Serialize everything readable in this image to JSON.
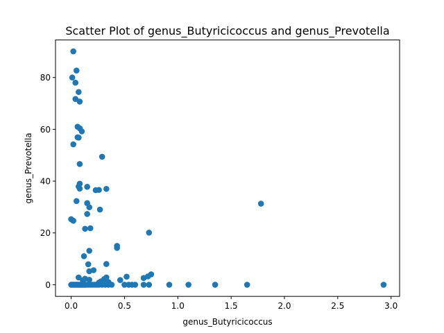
{
  "chart_data": {
    "type": "scatter",
    "title": "Scatter Plot of genus_Butyricicoccus and genus_Prevotella",
    "xlabel": "genus_Butyricicoccus",
    "ylabel": "genus_Prevotella",
    "xlim": [
      -0.147,
      3.08
    ],
    "ylim": [
      -4.5,
      94.5
    ],
    "xticks": [
      0.0,
      0.5,
      1.0,
      1.5,
      2.0,
      2.5,
      3.0
    ],
    "xtick_labels": [
      "0.0",
      "0.5",
      "1.0",
      "1.5",
      "2.0",
      "2.5",
      "3.0"
    ],
    "yticks": [
      0,
      20,
      40,
      60,
      80
    ],
    "ytick_labels": [
      "0",
      "20",
      "40",
      "60",
      "80"
    ],
    "grid": false,
    "colors": {
      "marker": "#1f77b4",
      "axes": "#000000",
      "background": "#ffffff"
    },
    "series": [
      {
        "points": [
          [
            0.02,
            90.1
          ],
          [
            0.05,
            82.7
          ],
          [
            0.01,
            80.0
          ],
          [
            0.04,
            78.0
          ],
          [
            0.07,
            74.4
          ],
          [
            0.04,
            71.7
          ],
          [
            0.08,
            70.7
          ],
          [
            0.06,
            61.0
          ],
          [
            0.08,
            60.4
          ],
          [
            0.1,
            59.2
          ],
          [
            0.06,
            56.9
          ],
          [
            0.07,
            56.8
          ],
          [
            0.02,
            54.2
          ],
          [
            0.29,
            49.4
          ],
          [
            0.08,
            46.6
          ],
          [
            0.08,
            39.0
          ],
          [
            0.07,
            37.9
          ],
          [
            0.08,
            37.1
          ],
          [
            0.15,
            37.8
          ],
          [
            0.33,
            37.0
          ],
          [
            0.23,
            36.5
          ],
          [
            0.26,
            36.6
          ],
          [
            0.05,
            32.3
          ],
          [
            0.15,
            31.5
          ],
          [
            0.17,
            29.9
          ],
          [
            0.27,
            29.0
          ],
          [
            0.15,
            27.3
          ],
          [
            0.0,
            25.3
          ],
          [
            0.02,
            24.7
          ],
          [
            0.13,
            21.6
          ],
          [
            0.18,
            21.8
          ],
          [
            0.73,
            20.1
          ],
          [
            0.43,
            15.0
          ],
          [
            0.43,
            14.2
          ],
          [
            0.17,
            13.1
          ],
          [
            0.12,
            11.0
          ],
          [
            0.33,
            8.0
          ],
          [
            0.16,
            7.9
          ],
          [
            0.21,
            5.6
          ],
          [
            0.17,
            5.2
          ],
          [
            0.75,
            4.0
          ],
          [
            0.72,
            3.2
          ],
          [
            0.68,
            2.6
          ],
          [
            0.52,
            3.1
          ],
          [
            0.46,
            1.8
          ],
          [
            0.33,
            2.8
          ],
          [
            0.31,
            2.2
          ],
          [
            0.07,
            2.8
          ],
          [
            0.13,
            2.3
          ],
          [
            0.11,
            1.7
          ],
          [
            0.17,
            1.9
          ],
          [
            0.28,
            1.3
          ],
          [
            0.35,
            1.0
          ],
          [
            0.26,
            0.8
          ],
          [
            1.78,
            31.3
          ],
          [
            0.0,
            0.0
          ],
          [
            0.01,
            0.0
          ],
          [
            0.02,
            0.0
          ],
          [
            0.03,
            0.0
          ],
          [
            0.04,
            0.0
          ],
          [
            0.05,
            0.0
          ],
          [
            0.06,
            0.0
          ],
          [
            0.07,
            0.0
          ],
          [
            0.08,
            0.0
          ],
          [
            0.09,
            0.0
          ],
          [
            0.1,
            0.0
          ],
          [
            0.11,
            0.0
          ],
          [
            0.12,
            0.0
          ],
          [
            0.13,
            0.0
          ],
          [
            0.14,
            0.0
          ],
          [
            0.16,
            0.0
          ],
          [
            0.18,
            0.0
          ],
          [
            0.2,
            0.0
          ],
          [
            0.22,
            0.0
          ],
          [
            0.24,
            0.0
          ],
          [
            0.26,
            0.0
          ],
          [
            0.29,
            0.0
          ],
          [
            0.32,
            0.0
          ],
          [
            0.35,
            0.0
          ],
          [
            0.38,
            0.0
          ],
          [
            0.5,
            0.0
          ],
          [
            0.54,
            0.0
          ],
          [
            0.57,
            0.0
          ],
          [
            0.6,
            0.0
          ],
          [
            0.68,
            0.0
          ],
          [
            0.73,
            0.0
          ],
          [
            0.92,
            0.0
          ],
          [
            1.1,
            0.0
          ],
          [
            1.35,
            0.0
          ],
          [
            1.65,
            0.0
          ],
          [
            2.93,
            0.0
          ]
        ]
      }
    ]
  }
}
